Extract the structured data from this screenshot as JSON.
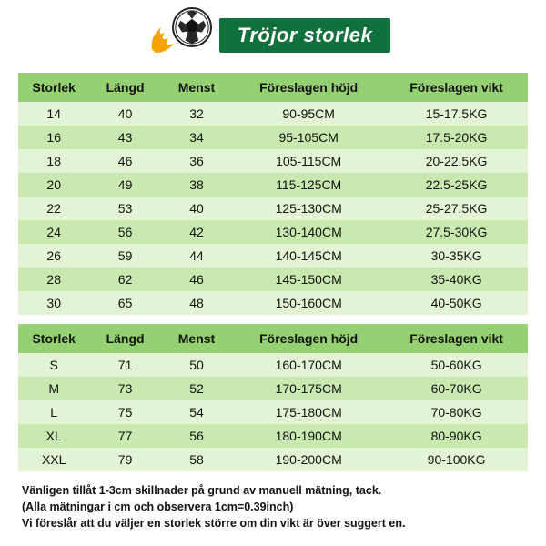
{
  "title": "Tröjor storlek",
  "icon": {
    "name": "soccer-ball-flame-icon",
    "flame_color": "#f5a300",
    "ball_white": "#ffffff",
    "ball_black": "#111111"
  },
  "colors": {
    "header_bar": "#11713c",
    "th_bg": "#95d072",
    "row_odd": "#e3f3d6",
    "row_even": "#cae9b0",
    "page_bg": "#ffffff",
    "text": "#111111"
  },
  "typography": {
    "title_fontsize": 22,
    "th_fontsize": 14,
    "td_fontsize": 14,
    "note_fontsize": 12.5
  },
  "columns": [
    {
      "key": "storlek",
      "label": "Storlek",
      "width_pct": 14
    },
    {
      "key": "langd",
      "label": "Längd",
      "width_pct": 14
    },
    {
      "key": "menst",
      "label": "Menst",
      "width_pct": 14
    },
    {
      "key": "hojd",
      "label": "Föreslagen höjd",
      "width_pct": 30
    },
    {
      "key": "vikt",
      "label": "Föreslagen vikt",
      "width_pct": 28
    }
  ],
  "kids_rows": [
    {
      "storlek": "14",
      "langd": "40",
      "menst": "32",
      "hojd": "90-95CM",
      "vikt": "15-17.5KG"
    },
    {
      "storlek": "16",
      "langd": "43",
      "menst": "34",
      "hojd": "95-105CM",
      "vikt": "17.5-20KG"
    },
    {
      "storlek": "18",
      "langd": "46",
      "menst": "36",
      "hojd": "105-115CM",
      "vikt": "20-22.5KG"
    },
    {
      "storlek": "20",
      "langd": "49",
      "menst": "38",
      "hojd": "115-125CM",
      "vikt": "22.5-25KG"
    },
    {
      "storlek": "22",
      "langd": "53",
      "menst": "40",
      "hojd": "125-130CM",
      "vikt": "25-27.5KG"
    },
    {
      "storlek": "24",
      "langd": "56",
      "menst": "42",
      "hojd": "130-140CM",
      "vikt": "27.5-30KG"
    },
    {
      "storlek": "26",
      "langd": "59",
      "menst": "44",
      "hojd": "140-145CM",
      "vikt": "30-35KG"
    },
    {
      "storlek": "28",
      "langd": "62",
      "menst": "46",
      "hojd": "145-150CM",
      "vikt": "35-40KG"
    },
    {
      "storlek": "30",
      "langd": "65",
      "menst": "48",
      "hojd": "150-160CM",
      "vikt": "40-50KG"
    }
  ],
  "adult_rows": [
    {
      "storlek": "S",
      "langd": "71",
      "menst": "50",
      "hojd": "160-170CM",
      "vikt": "50-60KG"
    },
    {
      "storlek": "M",
      "langd": "73",
      "menst": "52",
      "hojd": "170-175CM",
      "vikt": "60-70KG"
    },
    {
      "storlek": "L",
      "langd": "75",
      "menst": "54",
      "hojd": "175-180CM",
      "vikt": "70-80KG"
    },
    {
      "storlek": "XL",
      "langd": "77",
      "menst": "56",
      "hojd": "180-190CM",
      "vikt": "80-90KG"
    },
    {
      "storlek": "XXL",
      "langd": "79",
      "menst": "58",
      "hojd": "190-200CM",
      "vikt": "90-100KG"
    }
  ],
  "notes": {
    "line1": "Vänligen tillåt 1-3cm skillnader på grund av manuell mätning, tack.",
    "line2": "(Alla mätningar i cm och observera 1cm=0.39inch)",
    "line3": "Vi föreslår att du väljer en storlek större om din vikt är över suggert en."
  }
}
